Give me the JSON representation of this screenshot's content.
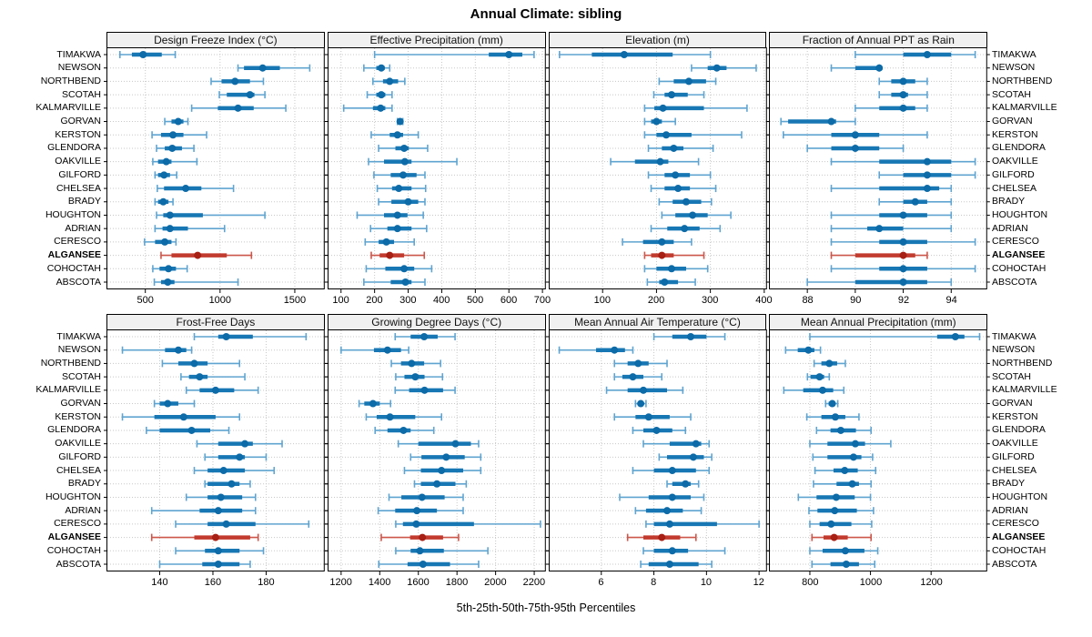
{
  "colors": {
    "whisker_blue": "#5fa4d0",
    "box_blue": "#1777b4",
    "dot_blue": "#0c6ba8",
    "whisker_red": "#cc564a",
    "box_red": "#c23b2e",
    "dot_red": "#a81f14",
    "grid": "#c8c8c8",
    "panel_header_bg": "#f0f0f0",
    "frame": "#000000"
  },
  "chart_data": {
    "type": "scatter",
    "subtype": "trellis-percentile-dotplot",
    "title": "Annual Climate: sibling",
    "caption": "5th-25th-50th-75th-95th Percentiles",
    "percentile_levels": [
      5,
      25,
      50,
      75,
      95
    ],
    "grid": true,
    "legend": "none",
    "categories": [
      "TIMAKWA",
      "NEWSON",
      "NORTHBEND",
      "SCOTAH",
      "KALMARVILLE",
      "GORVAN",
      "KERSTON",
      "GLENDORA",
      "OAKVILLE",
      "GILFORD",
      "CHELSEA",
      "BRADY",
      "HOUGHTON",
      "ADRIAN",
      "CERESCO",
      "ALGANSEE",
      "COHOCTAH",
      "ABSCOTA"
    ],
    "highlighted_category": "ALGANSEE",
    "panels": [
      {
        "title": "Design Freeze Index (°C)",
        "xlim": [
          240,
          1700
        ],
        "ticks": [
          500,
          1000,
          1500
        ],
        "values": [
          [
            330,
            410,
            485,
            610,
            700
          ],
          [
            1120,
            1160,
            1285,
            1400,
            1600
          ],
          [
            940,
            1010,
            1100,
            1200,
            1290
          ],
          [
            995,
            1045,
            1200,
            1230,
            1300
          ],
          [
            810,
            985,
            1120,
            1225,
            1440
          ],
          [
            630,
            675,
            720,
            755,
            785
          ],
          [
            545,
            605,
            685,
            755,
            910
          ],
          [
            575,
            630,
            680,
            745,
            825
          ],
          [
            550,
            585,
            640,
            675,
            845
          ],
          [
            565,
            585,
            625,
            665,
            710
          ],
          [
            580,
            625,
            770,
            875,
            1090
          ],
          [
            565,
            585,
            620,
            655,
            685
          ],
          [
            575,
            620,
            665,
            885,
            1300
          ],
          [
            565,
            615,
            665,
            785,
            1030
          ],
          [
            495,
            565,
            630,
            675,
            705
          ],
          [
            605,
            675,
            850,
            1045,
            1210
          ],
          [
            550,
            595,
            655,
            705,
            780
          ],
          [
            560,
            605,
            650,
            695,
            1120
          ]
        ]
      },
      {
        "title": "Effective Precipitation (mm)",
        "xlim": [
          60,
          710
        ],
        "ticks": [
          100,
          200,
          300,
          400,
          500,
          600,
          700
        ],
        "values": [
          [
            200,
            540,
            600,
            640,
            675
          ],
          [
            168,
            205,
            220,
            230,
            245
          ],
          [
            195,
            225,
            245,
            270,
            290
          ],
          [
            178,
            205,
            220,
            232,
            252
          ],
          [
            108,
            195,
            218,
            232,
            252
          ],
          [
            268,
            272,
            276,
            280,
            284
          ],
          [
            190,
            245,
            268,
            285,
            330
          ],
          [
            212,
            262,
            288,
            302,
            358
          ],
          [
            182,
            228,
            290,
            310,
            445
          ],
          [
            198,
            248,
            285,
            325,
            350
          ],
          [
            208,
            252,
            272,
            310,
            352
          ],
          [
            212,
            250,
            300,
            330,
            350
          ],
          [
            148,
            228,
            268,
            298,
            345
          ],
          [
            188,
            238,
            268,
            310,
            355
          ],
          [
            172,
            212,
            235,
            258,
            318
          ],
          [
            190,
            215,
            245,
            288,
            348
          ],
          [
            175,
            232,
            288,
            318,
            370
          ],
          [
            168,
            248,
            292,
            310,
            350
          ]
        ]
      },
      {
        "title": "Elevation (m)",
        "xlim": [
          0,
          405
        ],
        "ticks": [
          100,
          200,
          300,
          400
        ],
        "values": [
          [
            20,
            80,
            140,
            230,
            300
          ],
          [
            265,
            295,
            312,
            330,
            385
          ],
          [
            205,
            232,
            260,
            292,
            310
          ],
          [
            195,
            215,
            228,
            258,
            288
          ],
          [
            178,
            196,
            212,
            288,
            368
          ],
          [
            178,
            190,
            200,
            210,
            235
          ],
          [
            178,
            200,
            218,
            265,
            358
          ],
          [
            185,
            210,
            232,
            250,
            305
          ],
          [
            115,
            160,
            207,
            222,
            278
          ],
          [
            185,
            215,
            235,
            262,
            300
          ],
          [
            190,
            215,
            240,
            262,
            310
          ],
          [
            205,
            230,
            255,
            283,
            302
          ],
          [
            210,
            235,
            267,
            295,
            338
          ],
          [
            190,
            220,
            252,
            280,
            318
          ],
          [
            137,
            175,
            210,
            232,
            265
          ],
          [
            178,
            190,
            210,
            232,
            288
          ],
          [
            178,
            200,
            228,
            255,
            295
          ],
          [
            183,
            205,
            215,
            240,
            272
          ]
        ]
      },
      {
        "title": "Fraction of Annual PPT as Rain",
        "xlim": [
          86.4,
          95.5
        ],
        "ticks": [
          88,
          90,
          92,
          94
        ],
        "values": [
          [
            90,
            92,
            93,
            94,
            95
          ],
          [
            89,
            90,
            91,
            91,
            91
          ],
          [
            91,
            91.5,
            92,
            92.5,
            93
          ],
          [
            91,
            91.5,
            92,
            92.2,
            93
          ],
          [
            90,
            91,
            92,
            92.5,
            93
          ],
          [
            86.9,
            87.2,
            89,
            89.2,
            90
          ],
          [
            87,
            89,
            90,
            91,
            93
          ],
          [
            88,
            89,
            90,
            91,
            92
          ],
          [
            89,
            91,
            93,
            94,
            95
          ],
          [
            91,
            92,
            93,
            94,
            95
          ],
          [
            89,
            91,
            93,
            93.5,
            94
          ],
          [
            91,
            92,
            92.5,
            93,
            94
          ],
          [
            89,
            91,
            92,
            93,
            94
          ],
          [
            89,
            90.5,
            91,
            92,
            94
          ],
          [
            89,
            91,
            92,
            93,
            95
          ],
          [
            89,
            90,
            92,
            92.5,
            93
          ],
          [
            89,
            91,
            92,
            93,
            95
          ],
          [
            88,
            90,
            92,
            93,
            94
          ]
        ]
      },
      {
        "title": "Frost-Free Days",
        "xlim": [
          120,
          202
        ],
        "ticks": [
          140,
          160,
          180
        ],
        "values": [
          [
            153,
            162,
            165,
            175,
            195
          ],
          [
            126,
            142,
            147,
            150,
            152
          ],
          [
            141,
            147,
            153,
            158,
            170
          ],
          [
            148,
            151,
            155,
            158,
            172
          ],
          [
            150,
            155,
            161,
            168,
            177
          ],
          [
            138,
            140,
            143,
            147,
            153
          ],
          [
            126,
            138,
            149,
            161,
            170
          ],
          [
            135,
            140,
            152,
            159,
            166
          ],
          [
            154,
            162,
            172,
            175,
            186
          ],
          [
            157,
            162,
            170,
            172,
            180
          ],
          [
            153,
            158,
            164,
            172,
            183
          ],
          [
            157,
            158,
            167,
            170,
            174
          ],
          [
            150,
            158,
            163,
            171,
            176
          ],
          [
            137,
            155,
            162,
            171,
            176
          ],
          [
            146,
            158,
            165,
            176,
            196
          ],
          [
            137,
            153,
            161,
            174,
            177
          ],
          [
            146,
            157,
            162,
            170,
            179
          ],
          [
            140,
            156,
            162,
            170,
            174
          ]
        ]
      },
      {
        "title": "Growing Degree Days (°C)",
        "xlim": [
          1130,
          2260
        ],
        "ticks": [
          1200,
          1400,
          1600,
          1800,
          2000,
          2200
        ],
        "values": [
          [
            1480,
            1560,
            1630,
            1700,
            1790
          ],
          [
            1200,
            1370,
            1440,
            1510,
            1550
          ],
          [
            1460,
            1510,
            1565,
            1630,
            1715
          ],
          [
            1483,
            1528,
            1584,
            1632,
            1725
          ],
          [
            1480,
            1552,
            1632,
            1728,
            1790
          ],
          [
            1293,
            1320,
            1365,
            1400,
            1456
          ],
          [
            1330,
            1384,
            1453,
            1584,
            1720
          ],
          [
            1376,
            1440,
            1523,
            1560,
            1680
          ],
          [
            1496,
            1600,
            1792,
            1872,
            1912
          ],
          [
            1560,
            1616,
            1744,
            1840,
            1923
          ],
          [
            1528,
            1613,
            1720,
            1832,
            1923
          ],
          [
            1580,
            1613,
            1696,
            1792,
            1848
          ],
          [
            1448,
            1512,
            1619,
            1736,
            1832
          ],
          [
            1392,
            1480,
            1592,
            1696,
            1832
          ],
          [
            1483,
            1520,
            1589,
            1888,
            2232
          ],
          [
            1408,
            1557,
            1621,
            1728,
            1808
          ],
          [
            1483,
            1560,
            1608,
            1732,
            1960
          ],
          [
            1395,
            1544,
            1624,
            1764,
            1912
          ]
        ]
      },
      {
        "title": "Mean Annual Air Temperature (°C)",
        "xlim": [
          4.0,
          12.3
        ],
        "ticks": [
          6,
          8,
          10,
          12
        ],
        "values": [
          [
            8.0,
            8.7,
            9.4,
            10.0,
            10.7
          ],
          [
            4.4,
            5.8,
            6.5,
            6.9,
            7.2
          ],
          [
            6.5,
            7.0,
            7.4,
            7.8,
            8.5
          ],
          [
            6.5,
            6.8,
            7.2,
            7.6,
            8.3
          ],
          [
            6.2,
            7.0,
            7.6,
            8.5,
            9.1
          ],
          [
            7.3,
            7.45,
            7.5,
            7.55,
            7.7
          ],
          [
            6.5,
            7.3,
            7.8,
            8.6,
            9.4
          ],
          [
            7.2,
            7.6,
            8.1,
            8.7,
            9.2
          ],
          [
            7.6,
            8.6,
            9.6,
            9.8,
            10.1
          ],
          [
            8.2,
            8.5,
            9.5,
            9.9,
            10.2
          ],
          [
            7.2,
            8.0,
            8.7,
            9.6,
            10.1
          ],
          [
            8.5,
            8.7,
            9.2,
            9.4,
            9.7
          ],
          [
            6.7,
            7.8,
            8.7,
            9.4,
            9.9
          ],
          [
            7.3,
            7.7,
            8.5,
            9.1,
            9.8
          ],
          [
            7.7,
            8.0,
            8.6,
            10.4,
            12.0
          ],
          [
            7.0,
            7.6,
            8.3,
            9.0,
            9.6
          ],
          [
            7.6,
            8.0,
            8.7,
            9.3,
            10.7
          ],
          [
            7.5,
            7.8,
            8.6,
            9.7,
            10.2
          ]
        ]
      },
      {
        "title": "Mean Annual Precipitation (mm)",
        "xlim": [
          665,
          1385
        ],
        "ticks": [
          800,
          1000,
          1200
        ],
        "values": [
          [
            800,
            1220,
            1280,
            1310,
            1360
          ],
          [
            720,
            760,
            795,
            815,
            835
          ],
          [
            814,
            838,
            864,
            890,
            917
          ],
          [
            792,
            802,
            832,
            847,
            864
          ],
          [
            714,
            778,
            842,
            877,
            912
          ],
          [
            852,
            862,
            874,
            884,
            892
          ],
          [
            790,
            838,
            884,
            917,
            962
          ],
          [
            822,
            868,
            902,
            952,
            1002
          ],
          [
            800,
            858,
            950,
            982,
            1067
          ],
          [
            810,
            858,
            944,
            970,
            1007
          ],
          [
            817,
            878,
            915,
            958,
            1017
          ],
          [
            812,
            888,
            940,
            962,
            1002
          ],
          [
            762,
            822,
            887,
            948,
            1000
          ],
          [
            797,
            825,
            882,
            955,
            1010
          ],
          [
            800,
            832,
            870,
            937,
            1004
          ],
          [
            807,
            845,
            880,
            925,
            1002
          ],
          [
            800,
            842,
            917,
            980,
            1024
          ],
          [
            807,
            868,
            920,
            962,
            1014
          ]
        ]
      }
    ]
  }
}
